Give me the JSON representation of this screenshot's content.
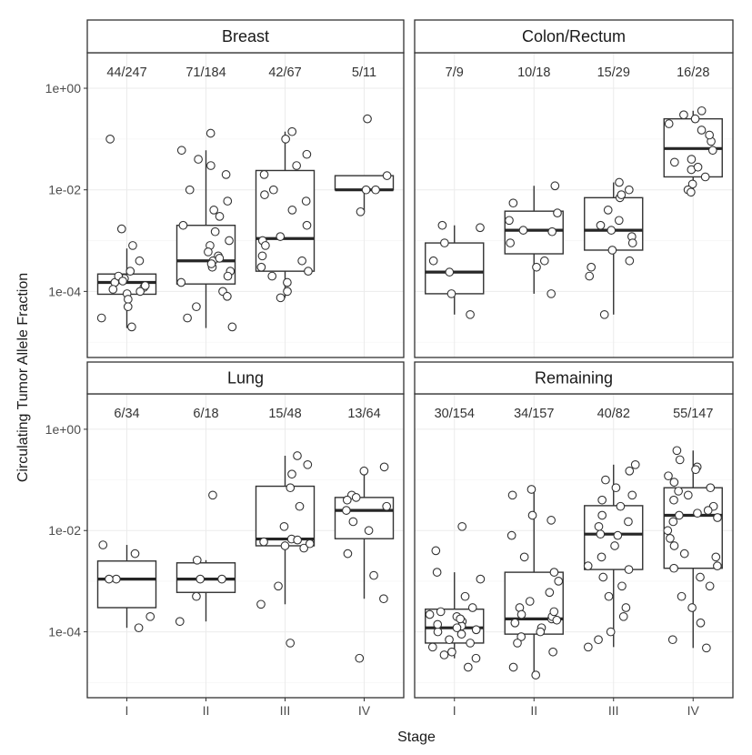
{
  "chart_data": {
    "type": "box",
    "facets": 4,
    "xlabel": "Stage",
    "ylabel": "Circulating Tumor Allele Fraction",
    "yscale": "log10",
    "ylim": [
      5e-06,
      5
    ],
    "yticks": [
      0.0001,
      0.01,
      1
    ],
    "ytick_labels": [
      "1e-04",
      "1e-02",
      "1e+00"
    ],
    "categories": [
      "I",
      "II",
      "III",
      "IV"
    ],
    "panels": [
      {
        "title": "Breast",
        "counts": [
          "44/247",
          "71/184",
          "42/67",
          "5/11"
        ],
        "boxes": [
          {
            "q1": 8.8e-05,
            "median": 0.00015,
            "q3": 0.00022,
            "lo": 1.9e-05,
            "hi": 0.0007
          },
          {
            "q1": 0.00014,
            "median": 0.0004,
            "q3": 0.002,
            "lo": 1.9e-05,
            "hi": 0.06
          },
          {
            "q1": 0.00025,
            "median": 0.0011,
            "q3": 0.024,
            "lo": 7.5e-05,
            "hi": 0.14
          },
          {
            "q1": 0.01,
            "median": 0.01,
            "q3": 0.019,
            "lo": 0.0037,
            "hi": 0.019
          }
        ],
        "points": [
          [
            0.1,
            0.0004,
            0.00025,
            0.00018,
            0.00015,
            0.00012,
            0.0001,
            9e-05,
            7e-05,
            5e-05,
            3e-05,
            2e-05,
            0.0008,
            0.0017,
            0.00013,
            0.0002,
            0.00016,
            0.00011
          ],
          [
            0.13,
            0.06,
            0.04,
            0.02,
            0.01,
            0.006,
            0.004,
            0.003,
            0.002,
            0.0015,
            0.001,
            0.0008,
            0.0006,
            0.0004,
            0.0003,
            0.00025,
            0.0002,
            0.00015,
            0.0001,
            8e-05,
            5e-05,
            3e-05,
            2e-05,
            0.03,
            0.0005,
            0.00035,
            0.00045
          ],
          [
            0.14,
            0.1,
            0.05,
            0.03,
            0.02,
            0.01,
            0.006,
            0.004,
            0.002,
            0.001,
            0.0008,
            0.0005,
            0.0003,
            0.0002,
            0.00015,
            0.0001,
            7.5e-05,
            0.0012,
            0.00025,
            0.008,
            0.0004
          ],
          [
            0.25,
            0.019,
            0.01,
            0.01,
            0.0037
          ]
        ]
      },
      {
        "title": "Colon/Rectum",
        "counts": [
          "7/9",
          "10/18",
          "15/29",
          "16/28"
        ],
        "boxes": [
          {
            "q1": 9e-05,
            "median": 0.00024,
            "q3": 0.0009,
            "lo": 3.5e-05,
            "hi": 0.002
          },
          {
            "q1": 0.00055,
            "median": 0.0016,
            "q3": 0.0038,
            "lo": 9e-05,
            "hi": 0.012
          },
          {
            "q1": 0.00065,
            "median": 0.0016,
            "q3": 0.007,
            "lo": 3.5e-05,
            "hi": 0.014
          },
          {
            "q1": 0.018,
            "median": 0.065,
            "q3": 0.25,
            "lo": 0.009,
            "hi": 0.36
          }
        ],
        "points": [
          [
            0.002,
            0.0018,
            0.0004,
            9e-05,
            3.5e-05,
            0.00024,
            0.0009
          ],
          [
            0.012,
            0.0055,
            0.0035,
            0.0016,
            0.0009,
            0.0004,
            9e-05,
            0.0025,
            0.0003,
            0.0015
          ],
          [
            0.014,
            0.01,
            0.007,
            0.004,
            0.002,
            0.0012,
            0.0009,
            0.00065,
            0.0003,
            0.0002,
            3.5e-05,
            0.0016,
            0.008,
            0.0004,
            0.0025
          ],
          [
            0.36,
            0.3,
            0.25,
            0.15,
            0.09,
            0.06,
            0.04,
            0.025,
            0.018,
            0.013,
            0.01,
            0.009,
            0.2,
            0.12,
            0.028,
            0.035
          ]
        ]
      },
      {
        "title": "Lung",
        "counts": [
          "6/34",
          "6/18",
          "15/48",
          "13/64"
        ],
        "boxes": [
          {
            "q1": 0.0003,
            "median": 0.0011,
            "q3": 0.0025,
            "lo": 0.00012,
            "hi": 0.0052
          },
          {
            "q1": 0.0006,
            "median": 0.0011,
            "q3": 0.0023,
            "lo": 0.00016,
            "hi": 0.0026
          },
          {
            "q1": 0.005,
            "median": 0.0068,
            "q3": 0.075,
            "lo": 0.00035,
            "hi": 0.3
          },
          {
            "q1": 0.0069,
            "median": 0.025,
            "q3": 0.045,
            "lo": 0.00045,
            "hi": 0.17
          }
        ],
        "points": [
          [
            0.0052,
            0.0035,
            0.0011,
            0.0011,
            0.0002,
            0.00012
          ],
          [
            0.05,
            0.0026,
            0.0011,
            0.0011,
            0.0005,
            0.00016
          ],
          [
            0.3,
            0.2,
            0.13,
            0.07,
            0.03,
            0.012,
            0.0068,
            0.006,
            0.005,
            0.0045,
            0.0008,
            0.00035,
            6e-05,
            0.0055,
            0.0065
          ],
          [
            0.18,
            0.15,
            0.05,
            0.045,
            0.04,
            0.03,
            0.025,
            0.015,
            0.01,
            0.0035,
            0.0013,
            0.00045,
            3e-05
          ]
        ]
      },
      {
        "title": "Remaining",
        "counts": [
          "30/154",
          "34/157",
          "40/82",
          "55/147"
        ],
        "boxes": [
          {
            "q1": 6e-05,
            "median": 0.00012,
            "q3": 0.00028,
            "lo": 3e-05,
            "hi": 0.0015
          },
          {
            "q1": 9e-05,
            "median": 0.00018,
            "q3": 0.0015,
            "lo": 1.4e-05,
            "hi": 0.065
          },
          {
            "q1": 0.0017,
            "median": 0.0085,
            "q3": 0.031,
            "lo": 5e-05,
            "hi": 0.2
          },
          {
            "q1": 0.0018,
            "median": 0.02,
            "q3": 0.07,
            "lo": 4.8e-05,
            "hi": 0.38
          }
        ],
        "points": [
          [
            0.012,
            0.004,
            0.0015,
            0.0011,
            0.0005,
            0.0003,
            0.00025,
            0.0002,
            0.00016,
            0.00013,
            0.00012,
            0.0001,
            9e-05,
            7e-05,
            6e-05,
            5e-05,
            4e-05,
            3e-05,
            2e-05,
            3.5e-05,
            0.00011,
            0.00014,
            0.00018,
            0.00022
          ],
          [
            0.065,
            0.05,
            0.02,
            0.008,
            0.003,
            0.0015,
            0.001,
            0.0006,
            0.0004,
            0.0003,
            0.00022,
            0.00018,
            0.00015,
            0.00012,
            0.0001,
            8e-05,
            6e-05,
            4e-05,
            2e-05,
            1.4e-05,
            0.0002,
            0.00017,
            0.00025,
            0.016
          ],
          [
            0.2,
            0.15,
            0.1,
            0.07,
            0.05,
            0.03,
            0.02,
            0.012,
            0.008,
            0.005,
            0.003,
            0.002,
            0.0017,
            0.0012,
            0.0008,
            0.0005,
            0.0003,
            0.0002,
            0.0001,
            7e-05,
            5e-05,
            0.0085,
            0.015,
            0.04
          ],
          [
            0.38,
            0.25,
            0.18,
            0.12,
            0.09,
            0.07,
            0.05,
            0.04,
            0.03,
            0.025,
            0.02,
            0.015,
            0.01,
            0.007,
            0.005,
            0.003,
            0.002,
            0.0018,
            0.0012,
            0.0008,
            0.0005,
            0.0003,
            0.00015,
            7e-05,
            4.8e-05,
            0.022,
            0.018,
            0.16,
            0.06,
            0.0035
          ]
        ]
      }
    ]
  }
}
